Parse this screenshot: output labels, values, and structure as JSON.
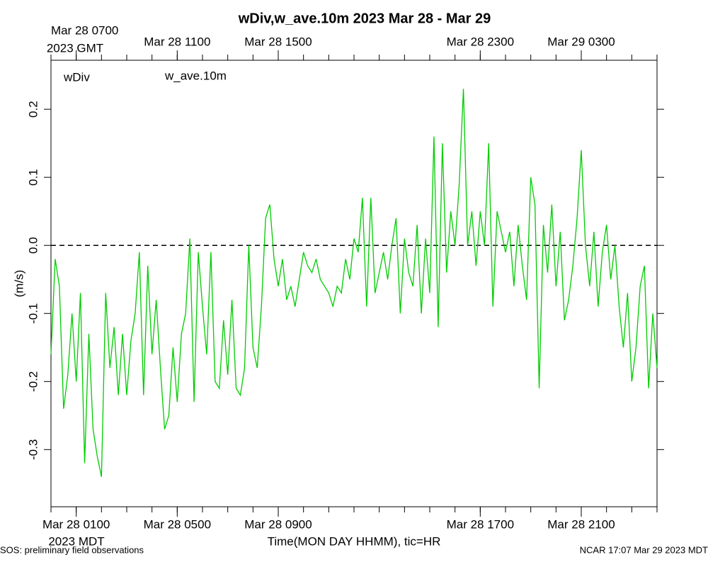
{
  "chart_data": {
    "type": "line",
    "title": "wDiv,w_ave.10m 2023 Mar 28 - Mar 29",
    "x_label": "Time(MON DAY HHMM), tic=HR",
    "y_label": "(m/s)",
    "top_zone_label": "2023 GMT",
    "bottom_zone_label": "2023 MDT",
    "footer_left": "SOS: preliminary field observations",
    "footer_right": "NCAR 17:07 Mar 29 2023 MDT",
    "extra_legend": {
      "name": "wDiv",
      "color": "#ff0000"
    },
    "reference_line": 0,
    "xlim": [
      0,
      1440
    ],
    "ylim": [
      -0.384,
      0.272
    ],
    "yticks": [
      0.2,
      0.1,
      {
        "value": 0,
        "label": "0.0"
      },
      -0.1,
      -0.2,
      -0.3
    ],
    "xticks": [
      {
        "value": 60,
        "label": "Mar 28 0100"
      },
      {
        "value": 300,
        "label": "Mar 28 0500"
      },
      {
        "value": 540,
        "label": "Mar 28 0900"
      },
      {
        "value": 1020,
        "label": "Mar 28 1700"
      },
      {
        "value": 1260,
        "label": "Mar 28 2100"
      }
    ],
    "xticks_top": [
      {
        "value": 60,
        "label": "Mar 28 0700"
      },
      {
        "value": 300,
        "label": "Mar 28 1100"
      },
      {
        "value": 540,
        "label": "Mar 28 1500"
      },
      {
        "value": 1020,
        "label": "Mar 28 2300"
      },
      {
        "value": 1260,
        "label": "Mar 29 0300"
      }
    ],
    "x_minor_ticks": [
      0,
      60,
      120,
      180,
      240,
      300,
      360,
      420,
      480,
      540,
      600,
      660,
      720,
      780,
      840,
      900,
      960,
      1020,
      1080,
      1140,
      1200,
      1260,
      1320,
      1380,
      1440
    ],
    "x": [
      0,
      10,
      20,
      30,
      40,
      50,
      60,
      70,
      80,
      90,
      100,
      110,
      120,
      130,
      140,
      150,
      160,
      170,
      180,
      190,
      200,
      210,
      220,
      230,
      240,
      250,
      260,
      270,
      280,
      290,
      300,
      310,
      320,
      330,
      340,
      350,
      360,
      370,
      380,
      390,
      400,
      410,
      420,
      430,
      440,
      450,
      460,
      470,
      480,
      490,
      500,
      510,
      520,
      530,
      540,
      550,
      560,
      570,
      580,
      590,
      600,
      610,
      620,
      630,
      640,
      650,
      660,
      670,
      680,
      690,
      700,
      710,
      720,
      730,
      740,
      750,
      760,
      770,
      780,
      790,
      800,
      810,
      820,
      830,
      840,
      850,
      860,
      870,
      880,
      890,
      900,
      910,
      920,
      930,
      940,
      950,
      960,
      970,
      980,
      990,
      1000,
      1010,
      1020,
      1030,
      1040,
      1050,
      1060,
      1070,
      1080,
      1090,
      1100,
      1110,
      1120,
      1130,
      1140,
      1150,
      1160,
      1170,
      1180,
      1190,
      1200,
      1210,
      1220,
      1230,
      1240,
      1250,
      1260,
      1270,
      1280,
      1290,
      1300,
      1310,
      1320,
      1330,
      1340,
      1350,
      1360,
      1370,
      1380,
      1390,
      1400,
      1410,
      1420,
      1430,
      1440
    ],
    "series": [
      {
        "name": "w_ave.10m",
        "color": "#00cc00",
        "values": [
          -0.16,
          -0.02,
          -0.06,
          -0.24,
          -0.19,
          -0.1,
          -0.2,
          -0.07,
          -0.32,
          -0.13,
          -0.27,
          -0.31,
          -0.34,
          -0.07,
          -0.18,
          -0.12,
          -0.22,
          -0.13,
          -0.22,
          -0.14,
          -0.1,
          -0.01,
          -0.22,
          -0.03,
          -0.16,
          -0.08,
          -0.18,
          -0.27,
          -0.25,
          -0.15,
          -0.23,
          -0.13,
          -0.1,
          0.01,
          -0.23,
          -0.01,
          -0.09,
          -0.16,
          -0.01,
          -0.2,
          -0.21,
          -0.11,
          -0.19,
          -0.08,
          -0.21,
          -0.22,
          -0.18,
          0.0,
          -0.15,
          -0.18,
          -0.09,
          0.04,
          0.06,
          -0.02,
          -0.06,
          -0.02,
          -0.08,
          -0.06,
          -0.09,
          -0.05,
          -0.01,
          -0.03,
          -0.04,
          -0.02,
          -0.05,
          -0.06,
          -0.07,
          -0.09,
          -0.06,
          -0.07,
          -0.02,
          -0.05,
          0.01,
          -0.01,
          0.07,
          -0.09,
          0.07,
          -0.07,
          -0.04,
          -0.01,
          -0.05,
          0.0,
          0.04,
          -0.1,
          0.01,
          -0.04,
          -0.06,
          0.03,
          -0.1,
          0.01,
          -0.07,
          0.16,
          -0.12,
          0.15,
          -0.04,
          0.05,
          0.0,
          0.09,
          0.23,
          0.0,
          0.05,
          -0.03,
          0.05,
          0.0,
          0.15,
          -0.09,
          0.05,
          0.02,
          -0.01,
          0.02,
          -0.06,
          0.03,
          -0.03,
          -0.08,
          0.1,
          0.06,
          -0.21,
          0.03,
          -0.04,
          0.06,
          -0.06,
          0.02,
          -0.11,
          -0.08,
          -0.03,
          0.04,
          0.14,
          0.0,
          -0.06,
          0.02,
          -0.09,
          -0.01,
          0.03,
          -0.05,
          0.0,
          -0.09,
          -0.15,
          -0.07,
          -0.2,
          -0.15,
          -0.06,
          -0.03,
          -0.21,
          -0.1,
          -0.18
        ]
      }
    ]
  }
}
